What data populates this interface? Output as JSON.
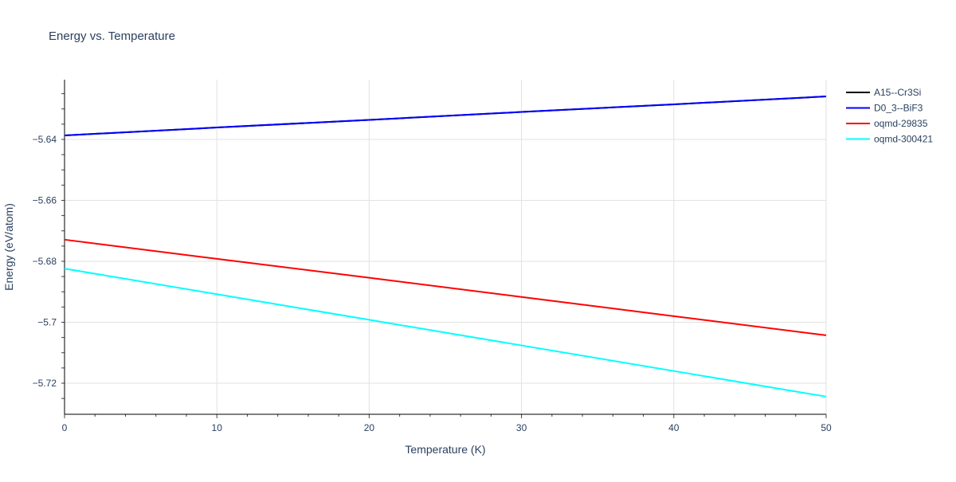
{
  "chart_data": {
    "type": "line",
    "title": "Energy vs. Temperature",
    "xlabel": "Temperature (K)",
    "ylabel": "Energy (eV/atom)",
    "xlim": [
      0,
      50
    ],
    "ylim": [
      -5.7302,
      -5.6204
    ],
    "x_ticks": [
      0,
      10,
      20,
      30,
      40,
      50
    ],
    "y_ticks": [
      -5.72,
      -5.7,
      -5.68,
      -5.66,
      -5.64
    ],
    "y_tick_labels": [
      "−5.72",
      "−5.7",
      "−5.68",
      "−5.66",
      "−5.64"
    ],
    "grid": true,
    "legend_position": "top-right",
    "x": [
      0,
      10,
      20,
      30,
      40,
      50
    ],
    "series": [
      {
        "name": "A15--Cr3Si",
        "color": "#000000",
        "values": [
          -5.6387,
          -5.6361,
          -5.6336,
          -5.631,
          -5.6285,
          -5.6259
        ]
      },
      {
        "name": "D0_3--BiF3",
        "color": "#0000ff",
        "values": [
          -5.6387,
          -5.6361,
          -5.6336,
          -5.631,
          -5.6285,
          -5.6259
        ]
      },
      {
        "name": "oqmd-29835",
        "color": "#ff0000",
        "values": [
          -5.6729,
          -5.6792,
          -5.6854,
          -5.6917,
          -5.698,
          -5.7043
        ]
      },
      {
        "name": "oqmd-300421",
        "color": "#00ffff",
        "values": [
          -5.6824,
          -5.6908,
          -5.6992,
          -5.7076,
          -5.716,
          -5.7244
        ]
      }
    ]
  }
}
